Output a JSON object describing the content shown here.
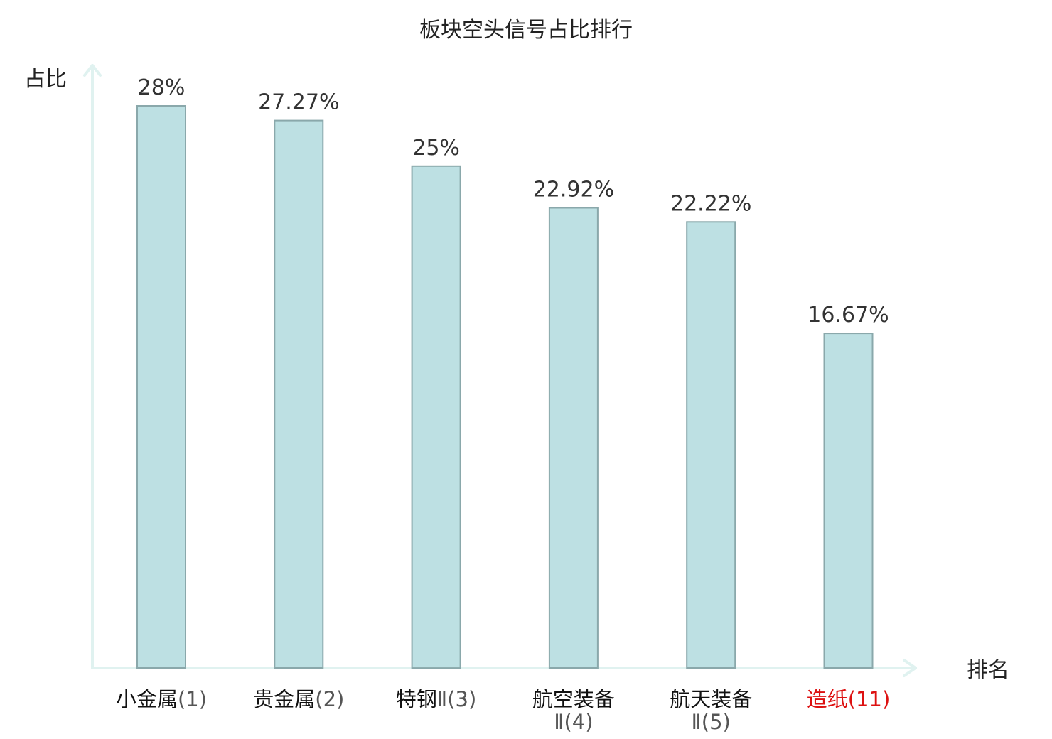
{
  "chart_data": {
    "type": "bar",
    "title": "板块空头信号占比排行",
    "ylabel": "占比",
    "xlabel": "排名",
    "ylim": [
      0,
      30
    ],
    "grid": false,
    "value_suffix": "%",
    "categories": [
      {
        "name": "小金属",
        "rank": "(1)",
        "highlight": false
      },
      {
        "name": "贵金属",
        "rank": "(2)",
        "highlight": false
      },
      {
        "name": "特钢",
        "rank": "Ⅱ(3)",
        "highlight": false
      },
      {
        "name": "航空装备",
        "rank": "Ⅱ(4)",
        "highlight": false
      },
      {
        "name": "航天装备",
        "rank": "Ⅱ(5)",
        "highlight": false
      },
      {
        "name": "造纸",
        "rank": "(11)",
        "highlight": true
      }
    ],
    "values": [
      28,
      27.27,
      25,
      22.92,
      22.22,
      16.67
    ],
    "value_labels": [
      "28%",
      "27.27%",
      "25%",
      "22.92%",
      "22.22%",
      "16.67%"
    ],
    "colors": {
      "bar_fill": "#bde0e3",
      "bar_stroke": "#8aa8ab",
      "axis": "#e0f2f0",
      "highlight": "#dd1111"
    }
  }
}
